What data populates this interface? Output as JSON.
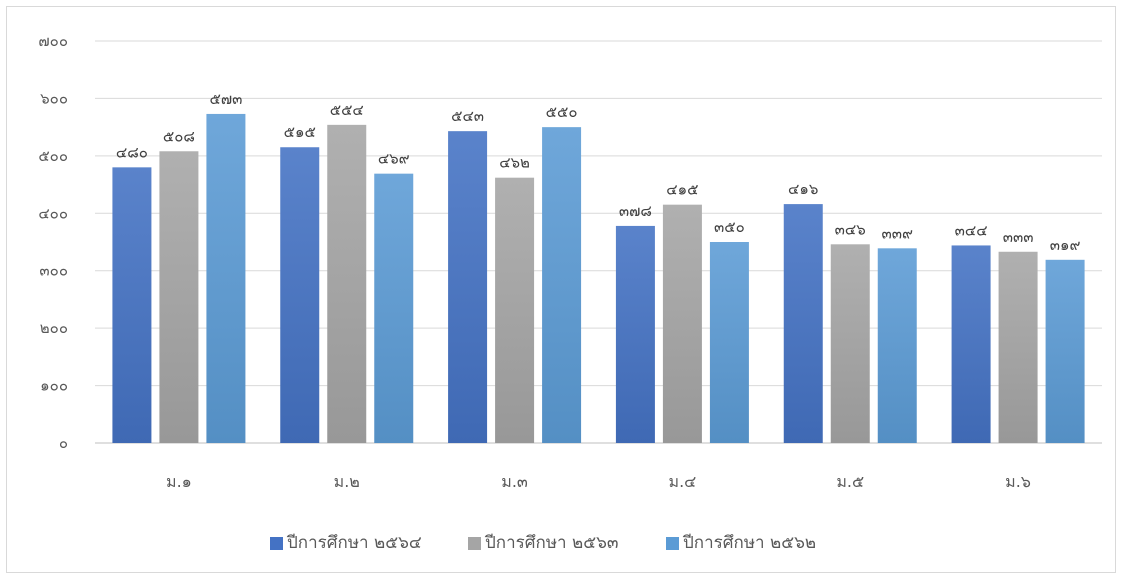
{
  "chart_data": {
    "type": "bar",
    "title": "",
    "xlabel": "",
    "ylabel": "",
    "ylim": [
      0,
      700
    ],
    "y_ticks": [
      0,
      100,
      200,
      300,
      400,
      500,
      600,
      700
    ],
    "y_tick_labels": [
      "๐",
      "๑๐๐",
      "๒๐๐",
      "๓๐๐",
      "๔๐๐",
      "๕๐๐",
      "๖๐๐",
      "๗๐๐"
    ],
    "grid": true,
    "legend_position": "bottom",
    "categories": [
      "ม.๑",
      "ม.๒",
      "ม.๓",
      "ม.๔",
      "ม.๕",
      "ม.๖"
    ],
    "series": [
      {
        "name": "ปีการศึกษา ๒๕๖๔",
        "color": "#4472c4",
        "values": [
          480,
          515,
          543,
          378,
          416,
          344
        ],
        "labels": [
          "๔๘๐",
          "๕๑๕",
          "๕๔๓",
          "๓๗๘",
          "๔๑๖",
          "๓๔๔"
        ]
      },
      {
        "name": "ปีการศึกษา ๒๕๖๓",
        "color": "#a5a5a5",
        "values": [
          508,
          554,
          462,
          415,
          346,
          333
        ],
        "labels": [
          "๕๐๘",
          "๕๕๔",
          "๔๖๒",
          "๔๑๕",
          "๓๔๖",
          "๓๓๓"
        ]
      },
      {
        "name": "ปีการศึกษา ๒๕๖๒",
        "color": "#5b9bd5",
        "values": [
          573,
          469,
          550,
          350,
          339,
          319
        ],
        "labels": [
          "๕๗๓",
          "๔๖๙",
          "๕๕๐",
          "๓๕๐",
          "๓๓๙",
          "๓๑๙"
        ]
      }
    ]
  }
}
